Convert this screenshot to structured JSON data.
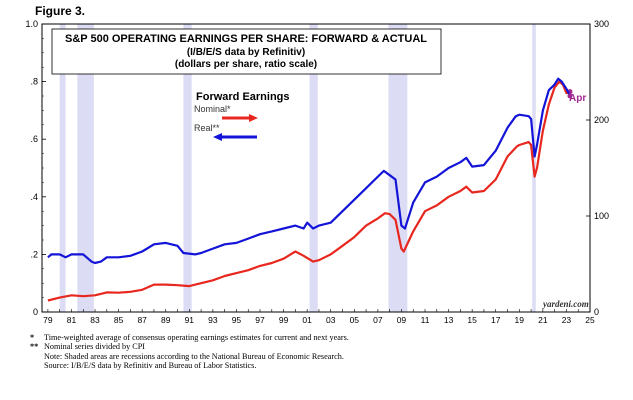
{
  "figure_label": "Figure 3.",
  "chart_data": {
    "type": "line",
    "title": "S&P 500 OPERATING EARNINGS PER SHARE: FORWARD & ACTUAL",
    "subtitle": "(I/B/E/S data by Refinitiv)",
    "subtitle2": "(dollars per share, ratio scale)",
    "legend_title": "Forward Earnings",
    "left_axis": {
      "range": [
        0,
        1.0
      ],
      "ticks": [
        "0",
        ".2",
        ".4",
        ".6",
        ".8",
        "1.0"
      ],
      "tick_values": [
        0,
        0.2,
        0.4,
        0.6,
        0.8,
        1.0
      ]
    },
    "right_axis": {
      "range": [
        0,
        300
      ],
      "ticks": [
        "0",
        "100",
        "200",
        "300"
      ],
      "tick_values": [
        0,
        100,
        200,
        300
      ]
    },
    "x_axis": {
      "range": [
        1978.5,
        2025
      ],
      "ticks": [
        "79",
        "80",
        "81",
        "82",
        "83",
        "84",
        "85",
        "86",
        "87",
        "88",
        "89",
        "90",
        "91",
        "92",
        "93",
        "94",
        "95",
        "96",
        "97",
        "98",
        "99",
        "00",
        "01",
        "02",
        "03",
        "04",
        "05",
        "06",
        "07",
        "08",
        "09",
        "10",
        "11",
        "12",
        "13",
        "14",
        "15",
        "16",
        "17",
        "18",
        "19",
        "20",
        "21",
        "22",
        "23",
        "24",
        "25"
      ]
    },
    "recessions": [
      [
        1980.0,
        1980.5
      ],
      [
        1981.5,
        1982.9
      ],
      [
        1990.5,
        1991.2
      ],
      [
        2001.2,
        2001.9
      ],
      [
        2007.9,
        2009.5
      ],
      [
        2020.1,
        2020.4
      ]
    ],
    "series": [
      {
        "name": "Nominal*",
        "color": "#e8271f",
        "x": [
          1979,
          1980,
          1981,
          1982,
          1983,
          1984,
          1985,
          1986,
          1987,
          1988,
          1989,
          1990,
          1991,
          1992,
          1993,
          1994,
          1995,
          1996,
          1997,
          1998,
          1999,
          2000,
          2000.7,
          2001.5,
          2002,
          2003,
          2004,
          2005,
          2006,
          2007,
          2007.6,
          2008,
          2008.5,
          2009,
          2009.2,
          2010,
          2011,
          2012,
          2013,
          2014,
          2014.5,
          2015,
          2016,
          2017,
          2018,
          2018.8,
          2019,
          2019.8,
          2020.0,
          2020.3,
          2020.5,
          2021,
          2021.5,
          2022,
          2022.4,
          2022.7,
          2023,
          2023.3
        ],
        "values": [
          0.04,
          0.05,
          0.058,
          0.055,
          0.058,
          0.068,
          0.067,
          0.07,
          0.077,
          0.095,
          0.095,
          0.093,
          0.09,
          0.1,
          0.11,
          0.125,
          0.135,
          0.145,
          0.16,
          0.17,
          0.185,
          0.21,
          0.195,
          0.175,
          0.18,
          0.2,
          0.23,
          0.26,
          0.3,
          0.325,
          0.343,
          0.34,
          0.32,
          0.22,
          0.21,
          0.28,
          0.35,
          0.37,
          0.4,
          0.42,
          0.435,
          0.415,
          0.42,
          0.46,
          0.54,
          0.575,
          0.58,
          0.59,
          0.58,
          0.47,
          0.5,
          0.63,
          0.72,
          0.78,
          0.8,
          0.79,
          0.76,
          0.765
        ]
      },
      {
        "name": "Real**",
        "color": "#1414d8",
        "x": [
          1979,
          1979.3,
          1980,
          1980.5,
          1981,
          1981.5,
          1982,
          1982.7,
          1983,
          1983.5,
          1984,
          1985,
          1986,
          1987,
          1988,
          1989,
          1990,
          1990.5,
          1991.5,
          1992,
          1993,
          1994,
          1995,
          1996,
          1997,
          1998,
          1999,
          2000,
          2000.7,
          2001,
          2001.5,
          2002,
          2003,
          2004,
          2005,
          2006,
          2007,
          2007.5,
          2008,
          2008.5,
          2009,
          2009.3,
          2010,
          2011,
          2012,
          2013,
          2014,
          2014.5,
          2015,
          2016,
          2017,
          2018,
          2018.7,
          2019,
          2019.8,
          2020.0,
          2020.3,
          2020.5,
          2021,
          2021.5,
          2022,
          2022.3,
          2022.6,
          2023,
          2023.3
        ],
        "values": [
          0.19,
          0.2,
          0.2,
          0.19,
          0.2,
          0.2,
          0.2,
          0.175,
          0.17,
          0.175,
          0.19,
          0.19,
          0.195,
          0.21,
          0.235,
          0.24,
          0.23,
          0.205,
          0.2,
          0.205,
          0.22,
          0.235,
          0.24,
          0.255,
          0.27,
          0.28,
          0.29,
          0.3,
          0.29,
          0.31,
          0.29,
          0.3,
          0.31,
          0.35,
          0.39,
          0.43,
          0.47,
          0.49,
          0.475,
          0.46,
          0.3,
          0.29,
          0.38,
          0.45,
          0.47,
          0.5,
          0.52,
          0.535,
          0.505,
          0.51,
          0.56,
          0.64,
          0.68,
          0.685,
          0.68,
          0.67,
          0.54,
          0.58,
          0.7,
          0.77,
          0.79,
          0.81,
          0.8,
          0.775,
          0.75
        ]
      }
    ],
    "annotations": {
      "end_label": "Apr",
      "watermark": "yardeni.com"
    }
  },
  "footnotes": [
    {
      "mark": "*",
      "text": "Time-weighted average of consensus operating earnings estimates for current and next years."
    },
    {
      "mark": "**",
      "text": "Nominal series divided by CPI"
    },
    {
      "mark": "",
      "text": "Note: Shaded areas are recessions according to the National Bureau of Economic Research."
    },
    {
      "mark": "",
      "text": "Source: I/B/E/S data by Refinitiv and Bureau of Labor Statistics."
    }
  ]
}
